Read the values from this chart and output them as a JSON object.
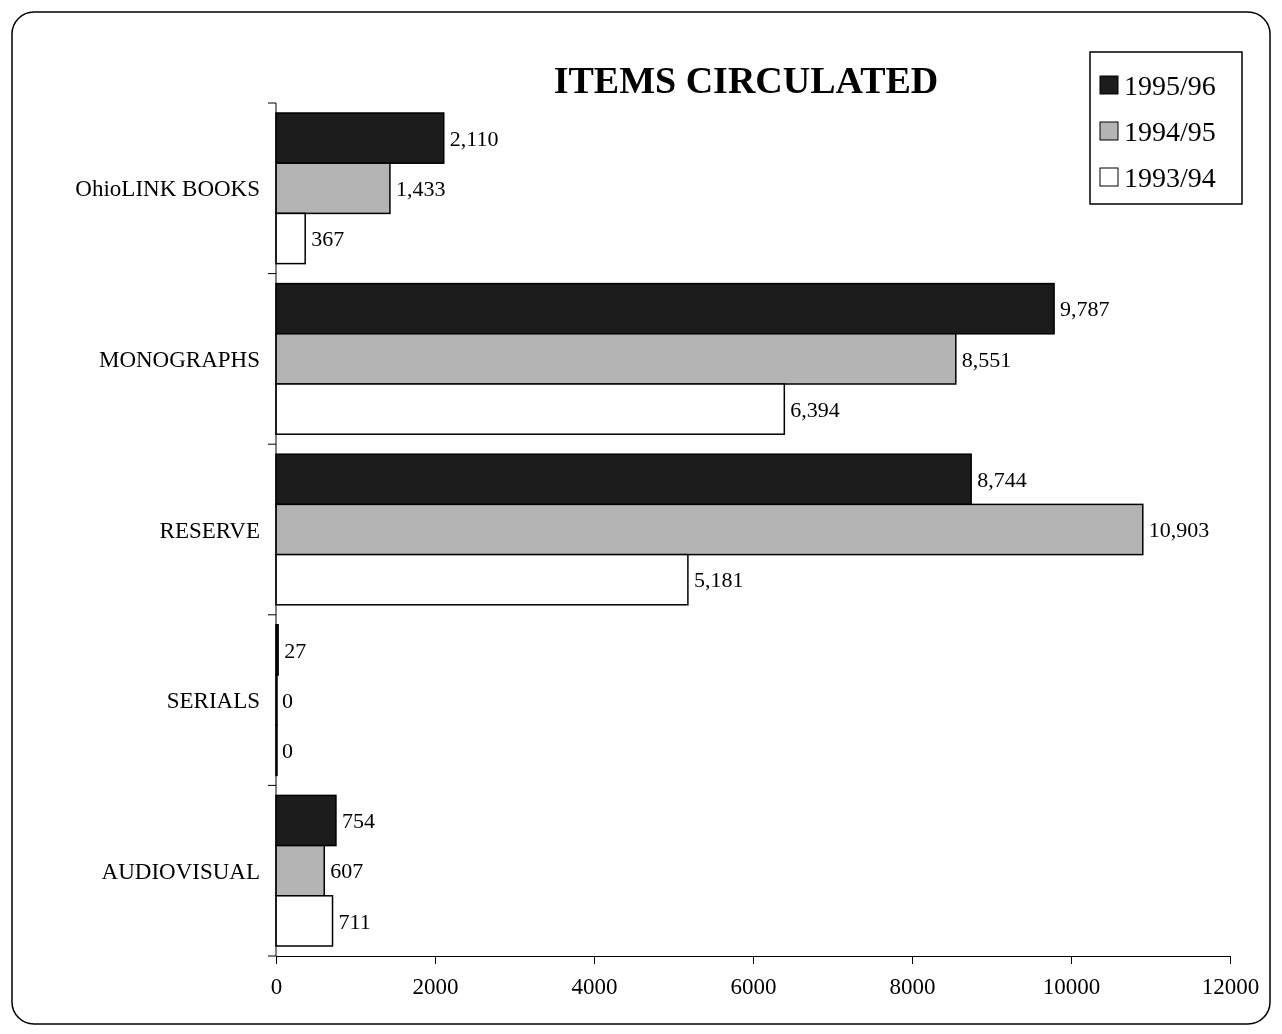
{
  "chart_data": {
    "type": "bar",
    "orientation": "horizontal",
    "title": "ITEMS CIRCULATED",
    "categories": [
      "OhioLINK BOOKS",
      "MONOGRAPHS",
      "RESERVE",
      "SERIALS",
      "AUDIOVISUAL"
    ],
    "series": [
      {
        "name": "1995/96",
        "color": "#1c1c1c",
        "values": [
          2110,
          9787,
          8744,
          27,
          754
        ],
        "value_labels": [
          "2,110",
          "9,787",
          "8,744",
          "27",
          "754"
        ]
      },
      {
        "name": "1994/95",
        "color": "#b4b4b4",
        "values": [
          1433,
          8551,
          10903,
          0,
          607
        ],
        "value_labels": [
          "1,433",
          "8,551",
          "10,903",
          "0",
          "607"
        ]
      },
      {
        "name": "1993/94",
        "color": "#ffffff",
        "values": [
          367,
          6394,
          5181,
          0,
          711
        ],
        "value_labels": [
          "367",
          "6,394",
          "5,181",
          "0",
          "711"
        ]
      }
    ],
    "xlim": [
      0,
      12000
    ],
    "xticks": [
      0,
      2000,
      4000,
      6000,
      8000,
      10000,
      12000
    ],
    "grid": false,
    "legend": "top right"
  }
}
